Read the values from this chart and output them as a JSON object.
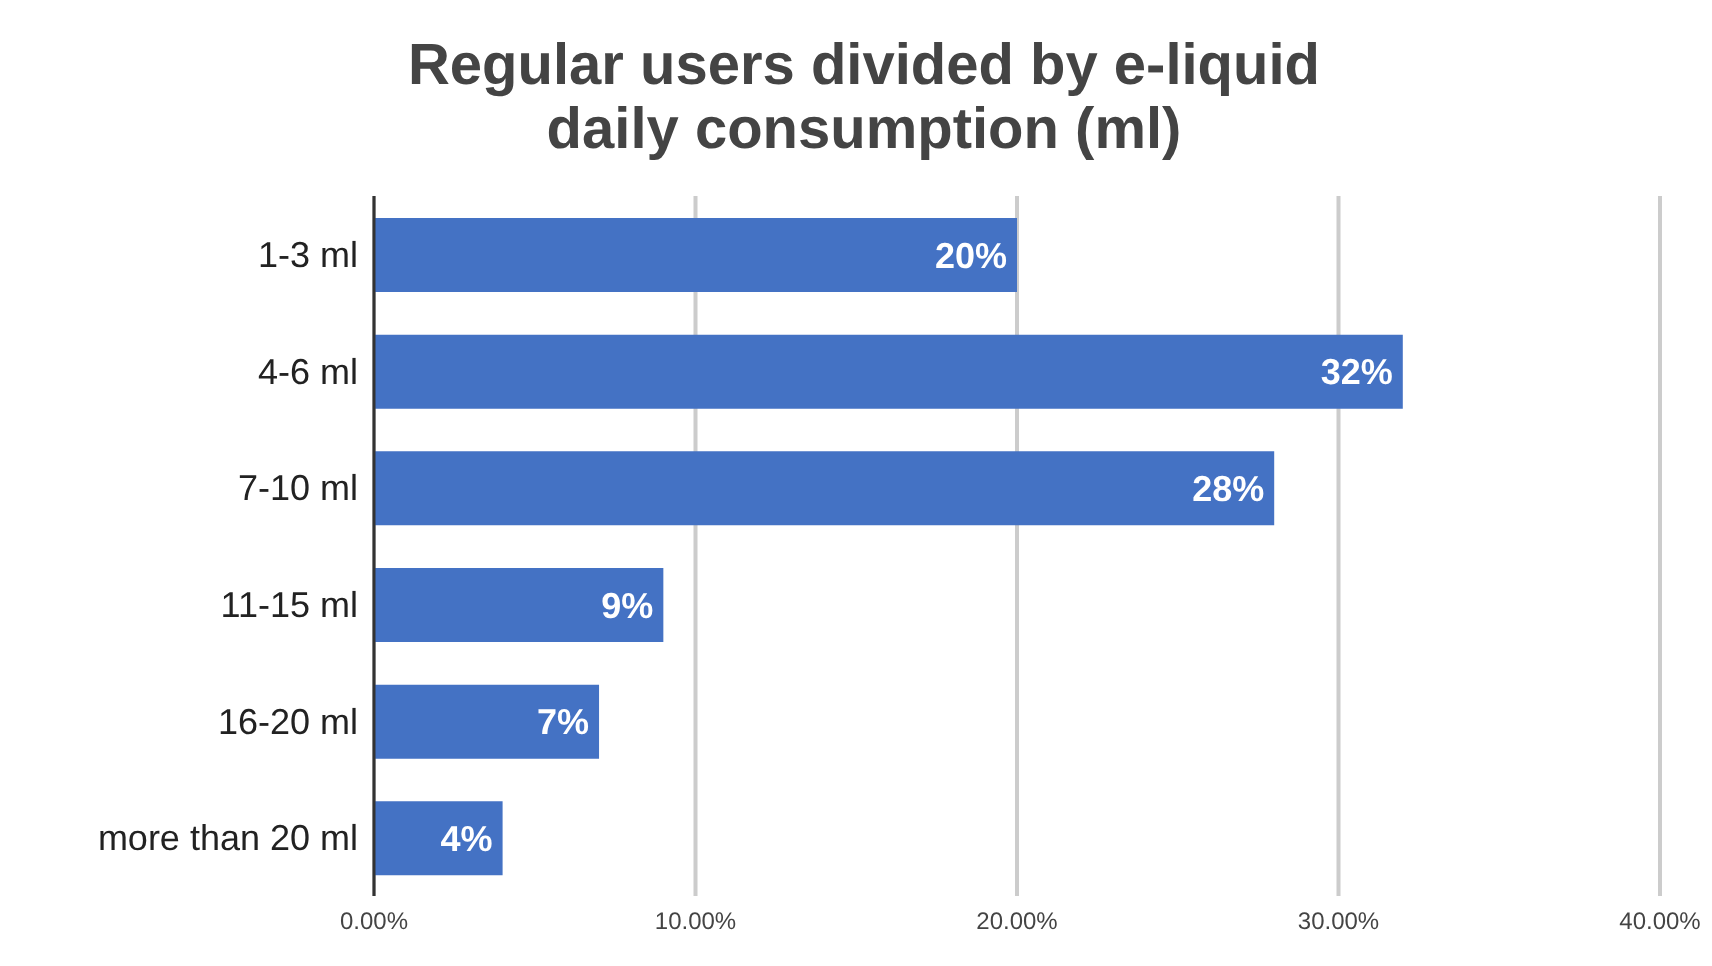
{
  "chart_data": {
    "type": "bar",
    "orientation": "horizontal",
    "title": "Regular users divided by e-liquid daily consumption (ml)",
    "categories": [
      "1-3 ml",
      "4-6 ml",
      "7-10 ml",
      "11-15 ml",
      "16-20 ml",
      "more than 20 ml"
    ],
    "values": [
      20,
      32,
      28,
      9,
      7,
      4
    ],
    "value_labels": [
      "20%",
      "32%",
      "28%",
      "9%",
      "7%",
      "4%"
    ],
    "color": "#4472c4",
    "xlim": [
      0,
      40
    ],
    "xticks": [
      {
        "value": 0,
        "label": "0.00%"
      },
      {
        "value": 10,
        "label": "10.00%"
      },
      {
        "value": 20,
        "label": "20.00%"
      },
      {
        "value": 30,
        "label": "30.00%"
      },
      {
        "value": 40,
        "label": "40.00%"
      }
    ],
    "grid": "x",
    "legend": false
  }
}
